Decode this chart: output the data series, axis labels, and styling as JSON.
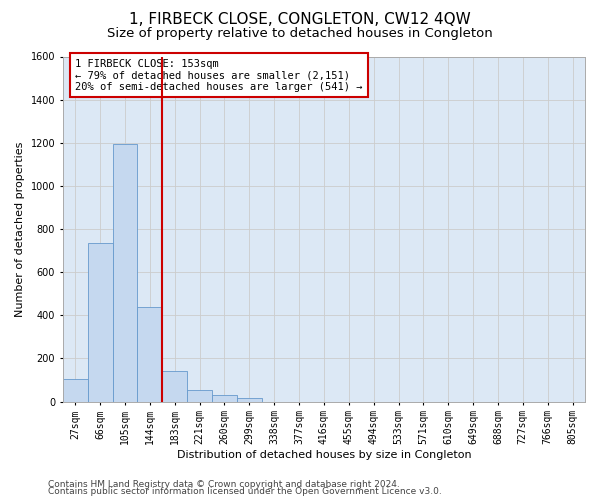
{
  "title": "1, FIRBECK CLOSE, CONGLETON, CW12 4QW",
  "subtitle": "Size of property relative to detached houses in Congleton",
  "xlabel": "Distribution of detached houses by size in Congleton",
  "ylabel": "Number of detached properties",
  "footer_line1": "Contains HM Land Registry data © Crown copyright and database right 2024.",
  "footer_line2": "Contains public sector information licensed under the Open Government Licence v3.0.",
  "bar_labels": [
    "27sqm",
    "66sqm",
    "105sqm",
    "144sqm",
    "183sqm",
    "221sqm",
    "260sqm",
    "299sqm",
    "338sqm",
    "377sqm",
    "416sqm",
    "455sqm",
    "494sqm",
    "533sqm",
    "571sqm",
    "610sqm",
    "649sqm",
    "688sqm",
    "727sqm",
    "766sqm",
    "805sqm"
  ],
  "bar_values": [
    105,
    735,
    1195,
    440,
    140,
    52,
    32,
    18,
    0,
    0,
    0,
    0,
    0,
    0,
    0,
    0,
    0,
    0,
    0,
    0,
    0
  ],
  "bar_color": "#c5d8ef",
  "bar_edgecolor": "#6699cc",
  "grid_color": "#cccccc",
  "bg_color": "#dce8f5",
  "vline_color": "#cc0000",
  "annotation_text": "1 FIRBECK CLOSE: 153sqm\n← 79% of detached houses are smaller (2,151)\n20% of semi-detached houses are larger (541) →",
  "annotation_box_color": "#cc0000",
  "ylim": [
    0,
    1600
  ],
  "yticks": [
    0,
    200,
    400,
    600,
    800,
    1000,
    1200,
    1400,
    1600
  ],
  "title_fontsize": 11,
  "subtitle_fontsize": 9.5,
  "axis_label_fontsize": 8,
  "tick_fontsize": 7,
  "annotation_fontsize": 7.5,
  "footer_fontsize": 6.5
}
